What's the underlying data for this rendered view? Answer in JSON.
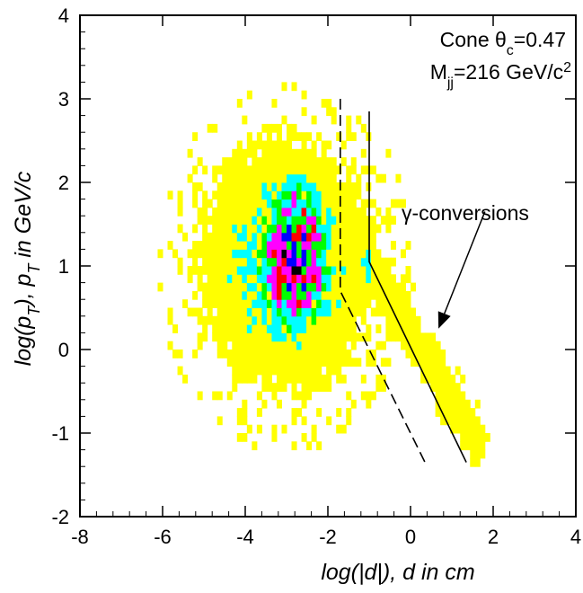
{
  "chart_data": {
    "type": "heatmap",
    "title": "",
    "xlabel": "log(|d|), d in cm",
    "ylabel_parts": [
      "log(p",
      "T",
      "), p",
      "T",
      " in GeV/c"
    ],
    "xlim": [
      -8,
      4
    ],
    "ylim": [
      -2,
      4
    ],
    "x_ticks": [
      "-8",
      "-6",
      "-4",
      "-2",
      "0",
      "2",
      "4"
    ],
    "y_ticks": [
      "-2",
      "-1",
      "0",
      "1",
      "2",
      "3",
      "4"
    ],
    "cone_label": [
      "Cone θ",
      "c",
      "=0.47"
    ],
    "mass_label": [
      "M",
      "jj",
      "=216 GeV/c",
      "2"
    ],
    "conversion_label": "γ-conversions",
    "color_levels": [
      "#ffff00",
      "#00ffff",
      "#00ff00",
      "#ff00ff",
      "#ff0000",
      "#0000ff",
      "#000000"
    ],
    "density": {
      "core_x": -2.8,
      "core_y": 1.1,
      "sigma_x": 0.7,
      "sigma_y": 0.75,
      "halo_x": -3.0,
      "halo_y": 1.0,
      "halo_sx": 1.4,
      "halo_sy": 1.0,
      "band_from": [
        -1.0,
        1.0
      ],
      "band_to": [
        1.6,
        -1.1
      ]
    },
    "series": [
      {
        "style": "dashed",
        "x": [
          -1.7,
          -1.7,
          0.4
        ],
        "y": [
          3.0,
          0.7,
          -1.4
        ]
      },
      {
        "style": "solid",
        "x": [
          -1.0,
          -1.0,
          1.35
        ],
        "y": [
          2.85,
          1.05,
          -1.35
        ]
      }
    ],
    "arrow": {
      "from": [
        1.8,
        1.65
      ],
      "to": [
        0.7,
        0.28
      ]
    }
  }
}
